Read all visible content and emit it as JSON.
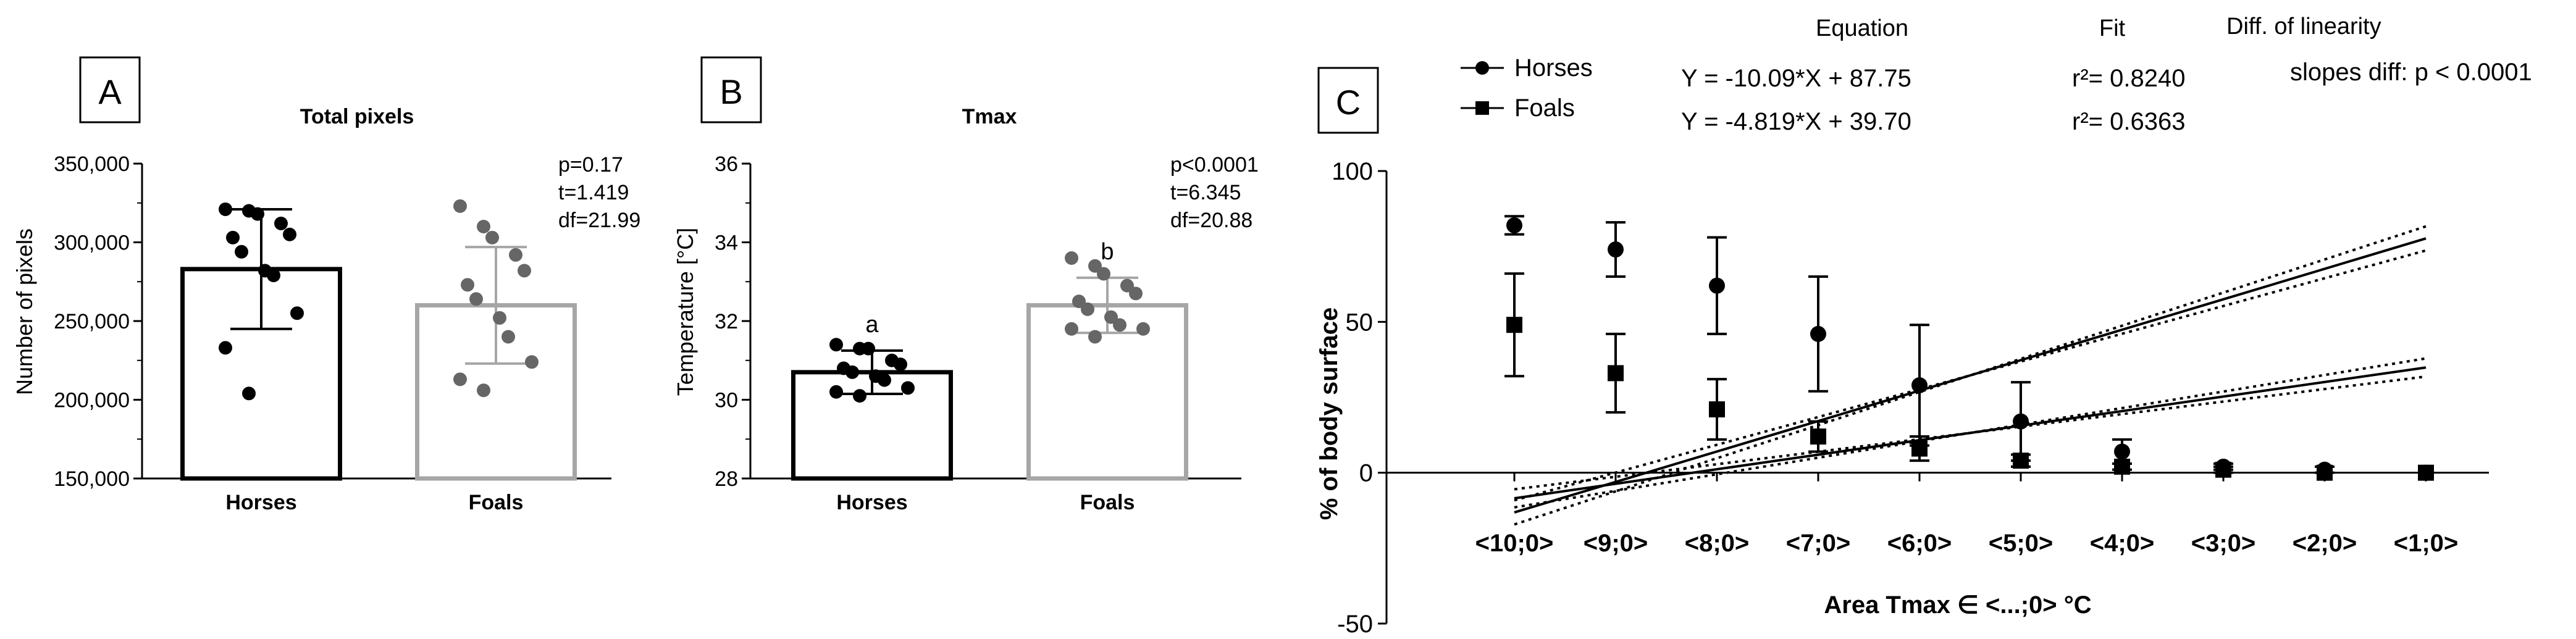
{
  "panels": [
    {
      "letter": "A",
      "title": "Total pixels",
      "ylabel": "Number of pixels",
      "yticks": [
        "350,000",
        "300,000",
        "250,000",
        "200,000",
        "150,000"
      ],
      "stats": [
        "p=0.17",
        "t=1.419",
        "df=21.99"
      ]
    },
    {
      "letter": "B",
      "title": "Tmax",
      "ylabel": "Temperature [°C]",
      "yticks": [
        "36",
        "34",
        "32",
        "30",
        "28"
      ],
      "stats": [
        "p<0.0001",
        "t=6.345",
        "df=20.88"
      ],
      "group_letters": [
        "a",
        "b"
      ]
    },
    {
      "letter": "C",
      "ylabel": "% of body surface",
      "xlabel": "Area Tmax ∈ <...;0> °C",
      "yticks": [
        "100",
        "50",
        "0",
        "-50"
      ],
      "legend": [
        "Horses",
        "Foals"
      ],
      "equation_header": "Equation",
      "fit_header": "Fit",
      "diff_header": "Diff. of linearity",
      "equations": [
        "Y = -10.09*X + 87.75",
        "Y = -4.819*X + 39.70"
      ],
      "fits": [
        "r²= 0.8240",
        "r²= 0.6363"
      ],
      "slopes_diff": "slopes diff: p < 0.0001"
    }
  ],
  "chart_data": [
    {
      "type": "bar",
      "title": "Total pixels",
      "ylabel": "Number of pixels",
      "categories": [
        "Horses",
        "Foals"
      ],
      "values": [
        283000,
        260000
      ],
      "sd": [
        38000,
        37000
      ],
      "ylim": [
        150000,
        350000
      ],
      "colors": [
        "#000000",
        "#a6a6a6"
      ],
      "points": [
        [
          321000,
          320000,
          318000,
          312000,
          305000,
          303000,
          294000,
          282000,
          279000,
          255000,
          233000,
          204000
        ],
        [
          323000,
          310000,
          303000,
          292000,
          282000,
          273000,
          264000,
          252000,
          240000,
          224000,
          213000,
          206000
        ]
      ]
    },
    {
      "type": "bar",
      "title": "Tmax",
      "ylabel": "Temperature [°C]",
      "categories": [
        "Horses",
        "Foals"
      ],
      "values": [
        30.7,
        32.4
      ],
      "sd": [
        0.55,
        0.7
      ],
      "ylim": [
        28,
        36
      ],
      "colors": [
        "#000000",
        "#a6a6a6"
      ],
      "points": [
        [
          31.4,
          31.3,
          31.3,
          31.0,
          30.9,
          30.8,
          30.7,
          30.6,
          30.5,
          30.3,
          30.2,
          30.1
        ],
        [
          33.6,
          33.4,
          33.2,
          32.9,
          32.7,
          32.5,
          32.3,
          32.1,
          31.9,
          31.8,
          31.8,
          31.6
        ]
      ]
    },
    {
      "type": "scatter",
      "ylabel": "% of body surface",
      "xlabel": "Area Tmax ∈ <...;0> °C",
      "categories": [
        "<10;0>",
        "<9;0>",
        "<8;0>",
        "<7;0>",
        "<6;0>",
        "<5;0>",
        "<4;0>",
        "<3;0>",
        "<2;0>",
        "<1;0>"
      ],
      "ylim": [
        -50,
        100
      ],
      "series": [
        {
          "name": "Horses",
          "marker": "circle",
          "values": [
            82,
            74,
            62,
            46,
            29,
            17,
            7,
            2,
            1,
            0
          ],
          "error": [
            3,
            9,
            16,
            19,
            20,
            13,
            4,
            1,
            1,
            0
          ],
          "fit": {
            "slope": -10.09,
            "intercept": 87.75
          }
        },
        {
          "name": "Foals",
          "marker": "square",
          "values": [
            49,
            33,
            21,
            12,
            8,
            4,
            2,
            1,
            0,
            0
          ],
          "error": [
            17,
            13,
            10,
            5,
            4,
            2,
            1,
            1,
            0,
            0
          ],
          "fit": {
            "slope": -4.819,
            "intercept": 39.7
          }
        }
      ]
    }
  ]
}
